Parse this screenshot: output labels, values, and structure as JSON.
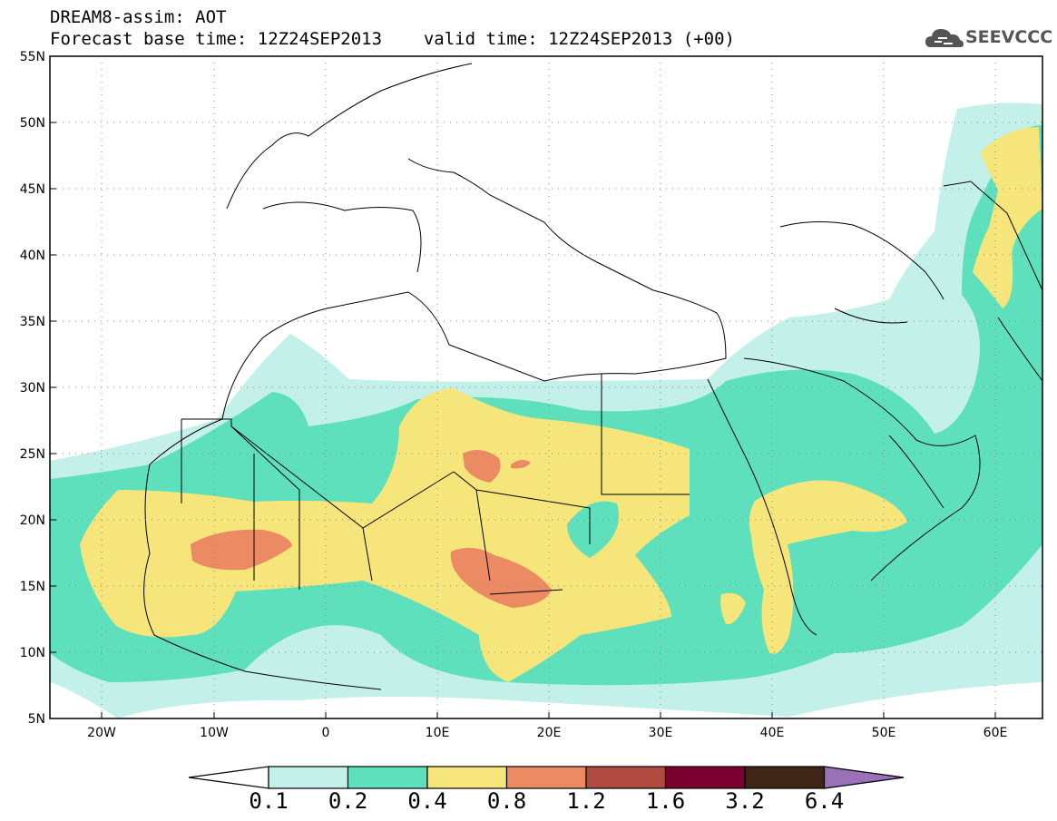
{
  "header": {
    "title": "DREAM8-assim: AOT",
    "base_time": "Forecast base time: 12Z24SEP2013",
    "valid_time": "valid time: 12Z24SEP2013 (+00)"
  },
  "logo": {
    "text": "SEEVCCC",
    "icon": "cloud-icon"
  },
  "map": {
    "lat_ticks": [
      "55N",
      "50N",
      "45N",
      "40N",
      "35N",
      "30N",
      "25N",
      "20N",
      "15N",
      "10N",
      "5N"
    ],
    "lon_ticks": [
      "20W",
      "10W",
      "0",
      "10E",
      "20E",
      "30E",
      "40E",
      "50E",
      "60E"
    ],
    "extent": {
      "lon": [
        -25,
        65
      ],
      "lat": [
        5,
        55
      ]
    },
    "grid": "dotted"
  },
  "colorbar": {
    "labels": [
      "0.1",
      "0.2",
      "0.4",
      "0.8",
      "1.2",
      "1.6",
      "3.2",
      "6.4"
    ],
    "colors": [
      "#c3f1ea",
      "#5ee0bd",
      "#f5e57a",
      "#ec8a64",
      "#b04a40",
      "#7a0030",
      "#3e2518",
      "#9a70b8"
    ],
    "under_color": "#ffffff"
  }
}
